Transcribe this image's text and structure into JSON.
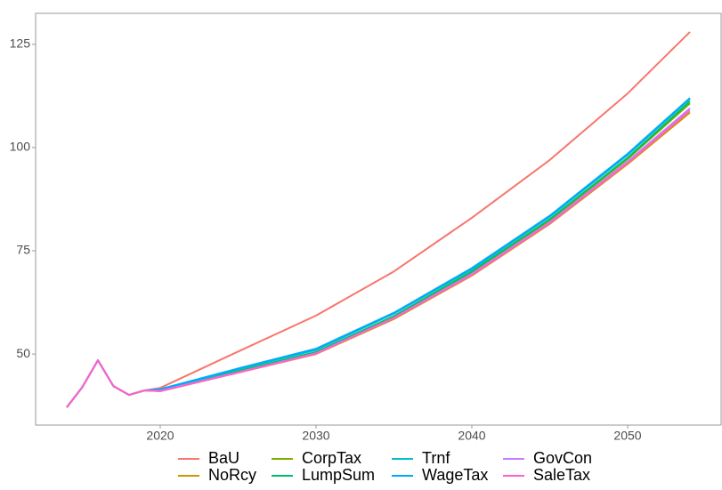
{
  "chart_data": {
    "type": "line",
    "x": [
      2014,
      2015,
      2016,
      2017,
      2018,
      2019,
      2020,
      2025,
      2030,
      2035,
      2040,
      2045,
      2050,
      2054
    ],
    "series": [
      {
        "name": "BaU",
        "color": "#F8766D",
        "values": [
          37.1,
          42,
          48.5,
          42.2,
          40.1,
          41.2,
          41.8,
          50.6,
          59.3,
          70,
          83,
          97,
          113.1,
          128
        ]
      },
      {
        "name": "NoRcy",
        "color": "#CD9600",
        "values": [
          37.1,
          42,
          48.5,
          42.2,
          40.1,
          41.2,
          41,
          45.5,
          50,
          58.5,
          69,
          81.5,
          96,
          108.5
        ]
      },
      {
        "name": "CorpTax",
        "color": "#7CAE00",
        "values": [
          37.1,
          42,
          48.5,
          42.2,
          40.1,
          41.2,
          41.1,
          45.7,
          50.3,
          59,
          69.7,
          82.3,
          97.2,
          110.7
        ]
      },
      {
        "name": "LumpSum",
        "color": "#00BE67",
        "values": [
          37.1,
          42,
          48.5,
          42.2,
          40.1,
          41.2,
          41.2,
          45.9,
          50.5,
          59.2,
          70,
          82.6,
          97.5,
          111.2
        ]
      },
      {
        "name": "Trnf",
        "color": "#00BFC4",
        "values": [
          37.1,
          42,
          48.5,
          42.2,
          40.1,
          41.2,
          41.4,
          46.3,
          51,
          59.8,
          70.5,
          83.2,
          98.2,
          111.8
        ]
      },
      {
        "name": "WageTax",
        "color": "#00A9FF",
        "values": [
          37.1,
          42,
          48.5,
          42.2,
          40.1,
          41.2,
          41.5,
          46.5,
          51.3,
          60,
          70.8,
          83.5,
          98.5,
          112
        ]
      },
      {
        "name": "GovCon",
        "color": "#C77CFF",
        "values": [
          37.1,
          42,
          48.5,
          42.2,
          40.1,
          41.2,
          41.1,
          45.6,
          50.2,
          58.8,
          69.4,
          81.9,
          96.6,
          109.5
        ]
      },
      {
        "name": "SaleTax",
        "color": "#FF61CC",
        "values": [
          37.1,
          42,
          48.5,
          42.2,
          40.1,
          41.2,
          41,
          45.5,
          50.1,
          58.7,
          69.2,
          81.7,
          96.3,
          109
        ]
      }
    ],
    "xlim": [
      2012,
      2056
    ],
    "xticks": [
      2020,
      2030,
      2040,
      2050
    ],
    "ylim": [
      32.8,
      132.5
    ],
    "yticks": [
      50,
      75,
      100,
      125
    ],
    "legend": "bottom"
  }
}
